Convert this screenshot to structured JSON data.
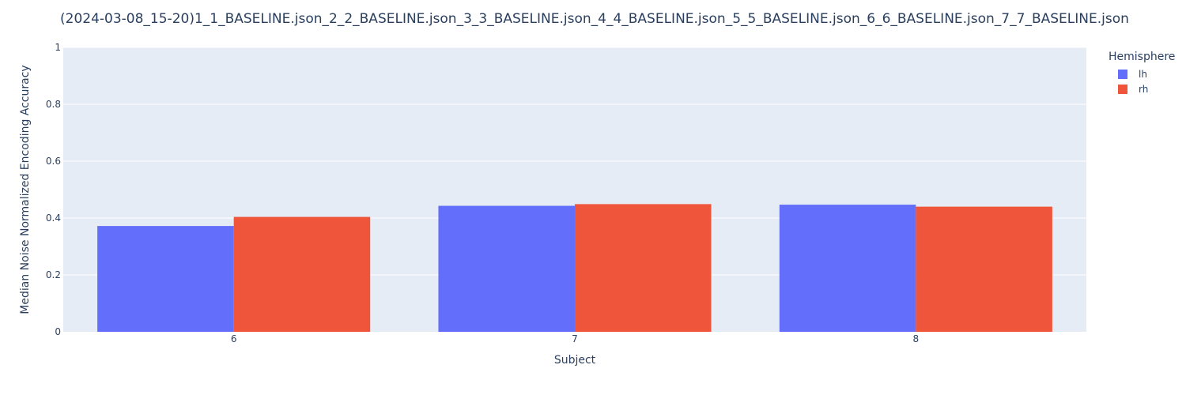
{
  "chart_data": {
    "type": "bar",
    "title": "(2024-03-08_15-20)1_1_BASELINE.json_2_2_BASELINE.json_3_3_BASELINE.json_4_4_BASELINE.json_5_5_BASELINE.json_6_6_BASELINE.json_7_7_BASELINE.json",
    "xlabel": "Subject",
    "ylabel": "Median Noise Normalized Encoding Accuracy",
    "categories": [
      "6",
      "7",
      "8"
    ],
    "ylim": [
      0,
      1
    ],
    "yticks": [
      0,
      0.2,
      0.4,
      0.6,
      0.8,
      1
    ],
    "ytick_labels": [
      "0",
      "0.2",
      "0.4",
      "0.6",
      "0.8",
      "1"
    ],
    "grid": true,
    "legend_title": "Hemisphere",
    "legend_position": "top-right",
    "series": [
      {
        "name": "lh",
        "color": "#636efa",
        "values": [
          0.372,
          0.443,
          0.447
        ]
      },
      {
        "name": "rh",
        "color": "#ef553b",
        "values": [
          0.404,
          0.449,
          0.44
        ]
      }
    ],
    "plot_background": "#e5ecf6"
  }
}
